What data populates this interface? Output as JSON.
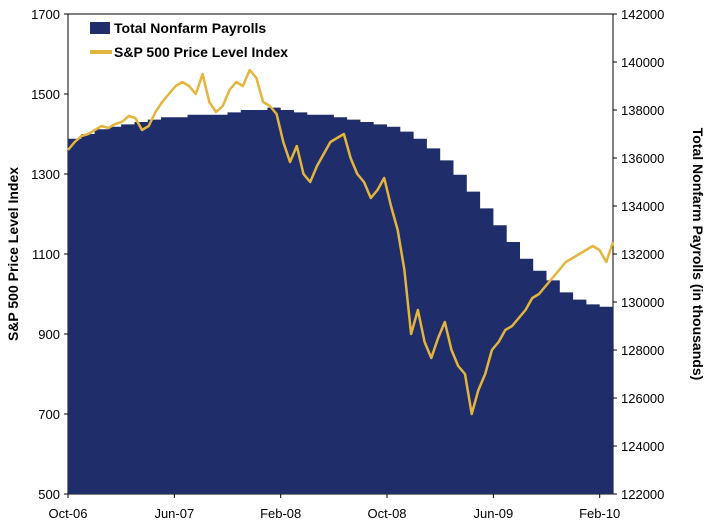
{
  "chart_data": {
    "type": "area+line",
    "x_ticks": [
      "Oct-06",
      "Jun-07",
      "Feb-08",
      "Oct-08",
      "Jun-09",
      "Feb-10"
    ],
    "left_axis": {
      "label": "S&P 500 Price Level Index",
      "range": [
        500,
        1700
      ],
      "ticks": [
        "500",
        "700",
        "900",
        "1100",
        "1300",
        "1500",
        "1700"
      ]
    },
    "right_axis": {
      "label": "Total Nonfarm Payrolls (in thousands)",
      "range": [
        122000,
        142000
      ],
      "ticks": [
        "122000",
        "124000",
        "126000",
        "128000",
        "130000",
        "132000",
        "134000",
        "136000",
        "138000",
        "140000",
        "142000"
      ]
    },
    "legend": [
      "Total Nonfarm Payrolls",
      "S&P 500 Price Level Index"
    ],
    "colors": {
      "payrolls": "#1f2d6b",
      "sp500": "#e3b53c"
    },
    "series": [
      {
        "name": "Total Nonfarm Payrolls",
        "axis": "right",
        "style": "step-area",
        "start": "Oct-06",
        "monthly_values": [
          136800,
          137000,
          137200,
          137300,
          137400,
          137500,
          137600,
          137700,
          137700,
          137800,
          137800,
          137800,
          137900,
          138000,
          138000,
          138100,
          138000,
          137900,
          137800,
          137800,
          137700,
          137600,
          137500,
          137400,
          137300,
          137100,
          136800,
          136400,
          135900,
          135300,
          134600,
          133900,
          133200,
          132500,
          131800,
          131300,
          130900,
          130400,
          130100,
          129900,
          129800,
          129700,
          129600,
          129600,
          129500,
          129500,
          129600
        ]
      },
      {
        "name": "S&P 500 Price Level Index",
        "axis": "left",
        "style": "line",
        "start": "Oct-06",
        "step": "half-month",
        "values": [
          1360,
          1380,
          1395,
          1400,
          1410,
          1420,
          1415,
          1425,
          1430,
          1445,
          1440,
          1410,
          1420,
          1455,
          1480,
          1500,
          1520,
          1530,
          1520,
          1500,
          1550,
          1480,
          1455,
          1470,
          1510,
          1530,
          1520,
          1560,
          1540,
          1480,
          1470,
          1450,
          1380,
          1330,
          1370,
          1300,
          1280,
          1320,
          1350,
          1380,
          1390,
          1400,
          1340,
          1300,
          1280,
          1240,
          1260,
          1290,
          1220,
          1160,
          1060,
          900,
          960,
          880,
          840,
          890,
          930,
          860,
          820,
          800,
          700,
          760,
          800,
          860,
          880,
          910,
          920,
          940,
          960,
          990,
          1000,
          1020,
          1040,
          1060,
          1080,
          1090,
          1100,
          1110,
          1120,
          1110,
          1080,
          1130
        ]
      }
    ]
  }
}
